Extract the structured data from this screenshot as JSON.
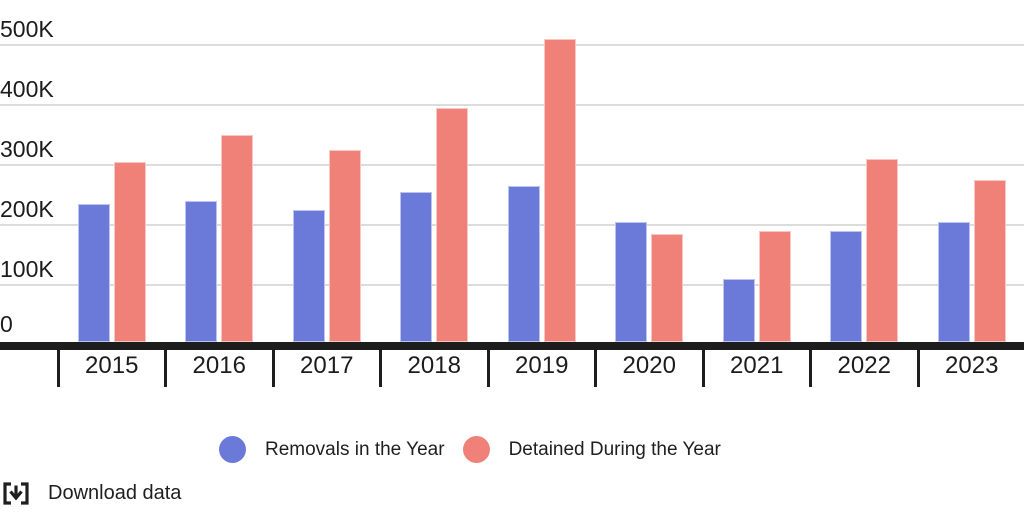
{
  "chart_data": {
    "type": "bar",
    "title": "",
    "xlabel": "",
    "ylabel": "",
    "values_unit": "thousands",
    "categories": [
      "2015",
      "2016",
      "2017",
      "2018",
      "2019",
      "2020",
      "2021",
      "2022",
      "2023"
    ],
    "series": [
      {
        "name": "Removals in the Year",
        "color": "#6B7AD9",
        "values": [
          235,
          240,
          225,
          255,
          265,
          205,
          110,
          190,
          205
        ]
      },
      {
        "name": "Detained During the Year",
        "color": "#F08178",
        "values": [
          305,
          350,
          325,
          395,
          510,
          185,
          190,
          310,
          275
        ]
      }
    ],
    "ylim": [
      0,
      500
    ],
    "y_ticks": [
      {
        "label": "0",
        "value": 0
      },
      {
        "label": "100K",
        "value": 100
      },
      {
        "label": "200K",
        "value": 200
      },
      {
        "label": "300K",
        "value": 300
      },
      {
        "label": "400K",
        "value": 400
      },
      {
        "label": "500K",
        "value": 500
      }
    ],
    "grid": true,
    "legend_position": "bottom"
  },
  "footer": {
    "download_label": "Download data",
    "download_icon": "bracketed-down-arrow"
  },
  "colors": {
    "axis": "#1D1D1D",
    "gridline": "#DCDCDC",
    "text": "#1F1F1F"
  }
}
